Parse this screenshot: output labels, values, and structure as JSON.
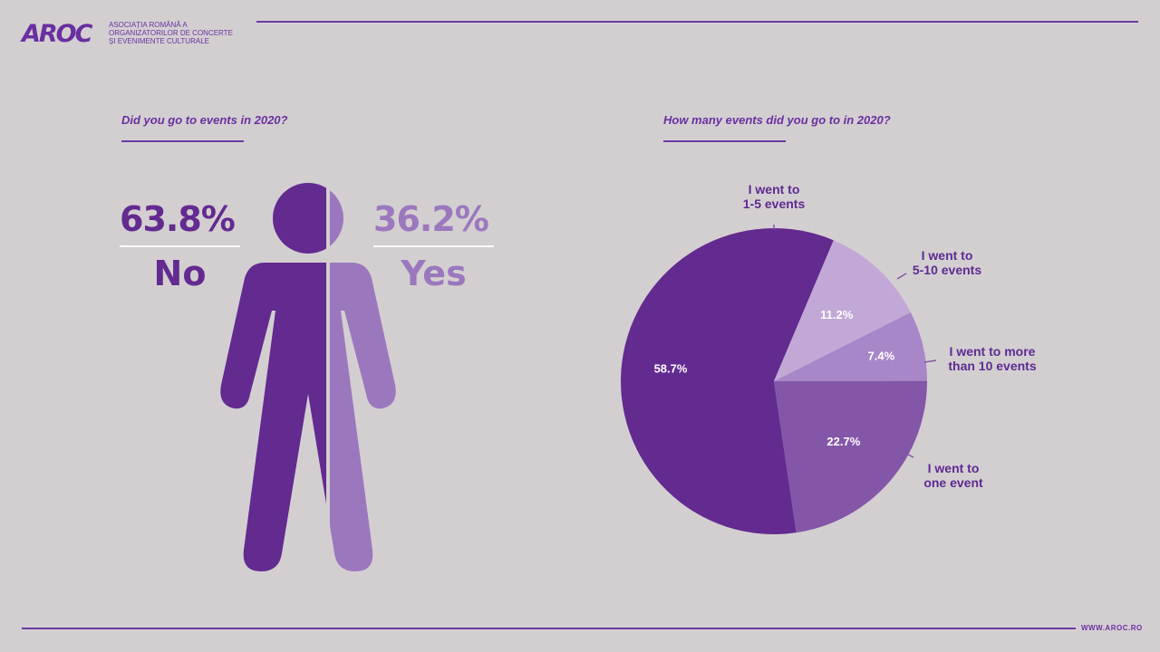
{
  "header": {
    "logo_text": "AROC",
    "org_lines": [
      "ASOCIAȚIA ROMÂNĂ A",
      "ORGANIZATORILOR DE CONCERTE",
      "ȘI EVENIMENTE CULTURALE"
    ]
  },
  "footer": {
    "site": "WWW.AROC.RO"
  },
  "left_panel": {
    "question": "Did you go to events in 2020?",
    "no": {
      "pct": "63.8%",
      "label": "No"
    },
    "yes": {
      "pct": "36.2%",
      "label": "Yes"
    }
  },
  "right_panel": {
    "question": "How many events did you go to in 2020?"
  },
  "colors": {
    "dark_purple": "#632a90",
    "light_purple": "#9b78be",
    "mid_purple": "#8456a8",
    "pale_purple": "#c2a8d6",
    "lavender": "#a887c8"
  },
  "chart_data": [
    {
      "type": "bar",
      "categories": [
        "No",
        "Yes"
      ],
      "values": [
        63.8,
        36.2
      ],
      "title": "Did you go to events in 2020?"
    },
    {
      "type": "pie",
      "title": "How many events did you go to in 2020?",
      "slices": [
        {
          "label": [
            "I went to",
            "1-5 events"
          ],
          "value": 58.7,
          "value_label": "58.7%",
          "color": "#632a90"
        },
        {
          "label": [
            "I went to",
            "5-10 events"
          ],
          "value": 11.2,
          "value_label": "11.2%",
          "color": "#c2a8d6"
        },
        {
          "label": [
            "I went to more",
            "than 10 events"
          ],
          "value": 7.4,
          "value_label": "7.4%",
          "color": "#a887c8"
        },
        {
          "label": [
            "I went to",
            "one event"
          ],
          "value": 22.7,
          "value_label": "22.7%",
          "color": "#8456a8"
        }
      ]
    }
  ]
}
